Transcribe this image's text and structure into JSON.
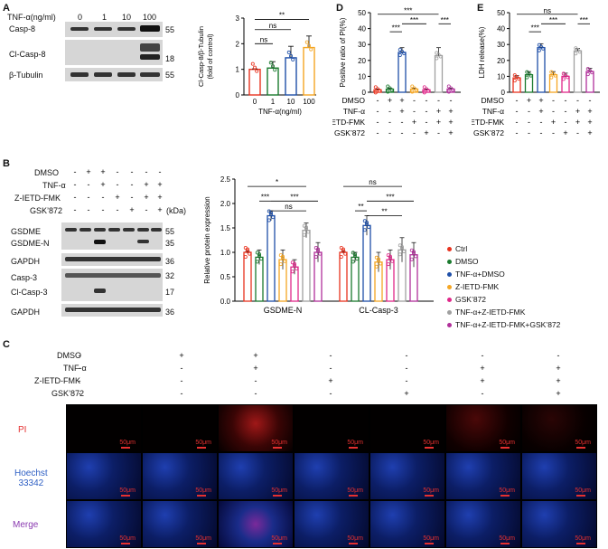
{
  "panel_letters": {
    "a": "A",
    "b": "B",
    "c": "C",
    "d": "D",
    "e": "E"
  },
  "panelA": {
    "treatment_label": "TNF-α(ng/ml)",
    "doses": [
      "0",
      "1",
      "10",
      "100"
    ],
    "rows": [
      "Casp-8",
      "Cl-Casp-8",
      "β-Tubulin"
    ],
    "kda": [
      "55",
      "18",
      "55"
    ],
    "chart_ylabel_1": "Cl-Casp-8/β-Tubulin",
    "chart_ylabel_2": "(fold of control)"
  },
  "panelB": {
    "conditions": [
      "DMSO",
      "TNF-α",
      "Z-IETD-FMK",
      "GSK’872"
    ],
    "kda_header": "(kDa)",
    "rows": [
      "GSDME",
      "GSDME-N",
      "GAPDH",
      "Casp-3",
      "Cl-Casp-3",
      "GAPDH"
    ],
    "kda": [
      "55",
      "35",
      "36",
      "32",
      "17",
      "36"
    ]
  },
  "panelC": {
    "conditions": [
      "DMSO",
      "TNF-α",
      "Z-IETD-FMK",
      "GSK’872"
    ],
    "signs": [
      [
        "-",
        "+",
        "+",
        "-",
        "-",
        "-",
        "-"
      ],
      [
        "-",
        "-",
        "+",
        "-",
        "-",
        "+",
        "+"
      ],
      [
        "-",
        "-",
        "-",
        "+",
        "-",
        "+",
        "+"
      ],
      [
        "-",
        "-",
        "-",
        "-",
        "+",
        "-",
        "+"
      ]
    ],
    "row_labels": [
      "PI",
      "Hoechst\n33342",
      "Merge"
    ],
    "scale": "50μm"
  },
  "legend": [
    "Ctrl",
    "DMSO",
    "TNF-α+DMSO",
    "Z-IETD-FMK",
    "GSK’872",
    "TNF-α+Z-IETD-FMK",
    "TNF-α+Z-IETD-FMK+GSK’872"
  ],
  "colors": [
    "#e8321e",
    "#1a7a2e",
    "#1e4fa8",
    "#f5a623",
    "#e0288a",
    "#a0a0a0",
    "#b0309a"
  ],
  "chart_data": [
    {
      "type": "bar",
      "id": "A",
      "categories": [
        "0",
        "1",
        "10",
        "100"
      ],
      "values": [
        1.0,
        1.05,
        1.45,
        1.85
      ],
      "errors": [
        0.02,
        0.25,
        0.45,
        0.45
      ],
      "colors": [
        "#e8321e",
        "#1a7a2e",
        "#1e4fa8",
        "#f5a623"
      ],
      "xlabel": "TNF-α(ng/ml)",
      "ylabel": "Cl-Casp-8/β-Tubulin (fold of control)",
      "ylim": [
        0,
        3
      ],
      "yticks": [
        "0",
        "1",
        "2",
        "3"
      ],
      "annotations": [
        {
          "between": [
            "0",
            "1"
          ],
          "text": "ns"
        },
        {
          "between": [
            "0",
            "10"
          ],
          "text": "ns"
        },
        {
          "between": [
            "0",
            "100"
          ],
          "text": "**"
        }
      ]
    },
    {
      "type": "bar",
      "id": "B",
      "groups": [
        "GSDME-N",
        "CL-Casp-3"
      ],
      "series": [
        {
          "name": "Ctrl",
          "values": [
            1.0,
            1.0
          ],
          "errors": [
            0.02,
            0.02
          ]
        },
        {
          "name": "DMSO",
          "values": [
            0.9,
            0.9
          ],
          "errors": [
            0.15,
            0.1
          ]
        },
        {
          "name": "TNF-α+DMSO",
          "values": [
            1.75,
            1.55
          ],
          "errors": [
            0.1,
            0.2
          ]
        },
        {
          "name": "Z-IETD-FMK",
          "values": [
            0.85,
            0.8
          ],
          "errors": [
            0.2,
            0.2
          ]
        },
        {
          "name": "GSK’872",
          "values": [
            0.7,
            0.85
          ],
          "errors": [
            0.15,
            0.2
          ]
        },
        {
          "name": "TNF-α+Z-IETD-FMK",
          "values": [
            1.45,
            1.05
          ],
          "errors": [
            0.15,
            0.25
          ]
        },
        {
          "name": "TNF-α+Z-IETD-FMK+GSK’872",
          "values": [
            1.0,
            0.95
          ],
          "errors": [
            0.2,
            0.25
          ]
        }
      ],
      "ylabel": "Relative protein expression",
      "ylim": [
        0,
        2.5
      ],
      "yticks": [
        "0.0",
        "0.5",
        "1.0",
        "1.5",
        "2.0",
        "2.5"
      ],
      "annotations": {
        "GSDME-N": [
          {
            "text": "***"
          },
          {
            "text": "*"
          },
          {
            "text": "ns"
          },
          {
            "text": "***"
          }
        ],
        "CL-Casp-3": [
          {
            "text": "**"
          },
          {
            "text": "ns"
          },
          {
            "text": "***"
          },
          {
            "text": "**"
          }
        ]
      }
    },
    {
      "type": "bar",
      "id": "D",
      "categories": [
        "1",
        "2",
        "3",
        "4",
        "5",
        "6",
        "7"
      ],
      "values": [
        1.5,
        2.0,
        25.0,
        2.0,
        1.5,
        23.0,
        2.0
      ],
      "errors": [
        0.5,
        0.5,
        3.0,
        0.5,
        0.5,
        5.0,
        0.5
      ],
      "ylabel": "Positive ratio of PI(%)",
      "ylim": [
        0,
        50
      ],
      "yticks": [
        "0",
        "10",
        "20",
        "30",
        "40",
        "50"
      ],
      "signs": [
        [
          "-",
          "+",
          "+",
          "-",
          "-",
          "-",
          "-"
        ],
        [
          "-",
          "-",
          "+",
          "-",
          "-",
          "+",
          "+"
        ],
        [
          "-",
          "-",
          "-",
          "+",
          "-",
          "+",
          "+"
        ],
        [
          "-",
          "-",
          "-",
          "-",
          "+",
          "-",
          "+"
        ]
      ],
      "annotations": [
        {
          "text": "***"
        },
        {
          "text": "***"
        },
        {
          "text": "***"
        },
        {
          "text": "***"
        }
      ]
    },
    {
      "type": "bar",
      "id": "E",
      "categories": [
        "1",
        "2",
        "3",
        "4",
        "5",
        "6",
        "7"
      ],
      "values": [
        9.0,
        11.0,
        28.0,
        11.0,
        10.0,
        26.0,
        13.0
      ],
      "errors": [
        1.5,
        2.0,
        2.5,
        2.0,
        2.0,
        1.5,
        2.0
      ],
      "ylabel": "LDH release(%)",
      "ylim": [
        0,
        50
      ],
      "yticks": [
        "0",
        "10",
        "20",
        "30",
        "40",
        "50"
      ],
      "signs": [
        [
          "-",
          "+",
          "+",
          "-",
          "-",
          "-",
          "-"
        ],
        [
          "-",
          "-",
          "+",
          "-",
          "-",
          "+",
          "+"
        ],
        [
          "-",
          "-",
          "-",
          "+",
          "-",
          "+",
          "+"
        ],
        [
          "-",
          "-",
          "-",
          "-",
          "+",
          "-",
          "+"
        ]
      ],
      "annotations": [
        {
          "text": "***"
        },
        {
          "text": "***"
        },
        {
          "text": "ns"
        },
        {
          "text": "***"
        }
      ]
    }
  ]
}
